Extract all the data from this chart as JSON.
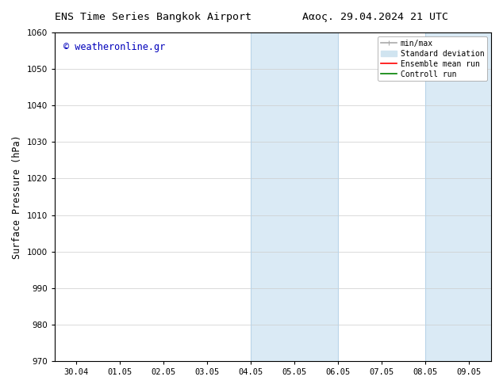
{
  "title_left": "ENS Time Series Bangkok Airport",
  "title_right": "Ααος. 29.04.2024 21 UTC",
  "ylabel": "Surface Pressure (hPa)",
  "ylim": [
    970,
    1060
  ],
  "yticks": [
    970,
    980,
    990,
    1000,
    1010,
    1020,
    1030,
    1040,
    1050,
    1060
  ],
  "xtick_labels": [
    "30.04",
    "01.05",
    "02.05",
    "03.05",
    "04.05",
    "05.05",
    "06.05",
    "07.05",
    "08.05",
    "09.05"
  ],
  "xtick_positions": [
    0,
    1,
    2,
    3,
    4,
    5,
    6,
    7,
    8,
    9
  ],
  "xlim": [
    -0.5,
    9.5
  ],
  "shaded_regions": [
    {
      "x_start": 4,
      "x_end": 6,
      "color": "#daeaf5"
    },
    {
      "x_start": 8,
      "x_end": 9.5,
      "color": "#daeaf5"
    }
  ],
  "shaded_lines_color": "#b8d4e8",
  "watermark_text": "© weatheronline.gr",
  "watermark_color": "#0000bb",
  "legend_entries": [
    {
      "label": "min/max",
      "color": "#aaaaaa",
      "lw": 1.2,
      "style": "line_with_caps"
    },
    {
      "label": "Standard deviation",
      "color": "#d0e4f0",
      "lw": 7,
      "style": "thick"
    },
    {
      "label": "Ensemble mean run",
      "color": "#ff0000",
      "lw": 1.2,
      "style": "line"
    },
    {
      "label": "Controll run",
      "color": "#008000",
      "lw": 1.2,
      "style": "line"
    }
  ],
  "bg_color": "#ffffff",
  "spine_color": "#000000",
  "grid_color": "#cccccc",
  "font_size_title": 9.5,
  "font_size_ticks": 7.5,
  "font_size_ylabel": 8.5,
  "font_size_legend": 7,
  "font_size_watermark": 8.5
}
